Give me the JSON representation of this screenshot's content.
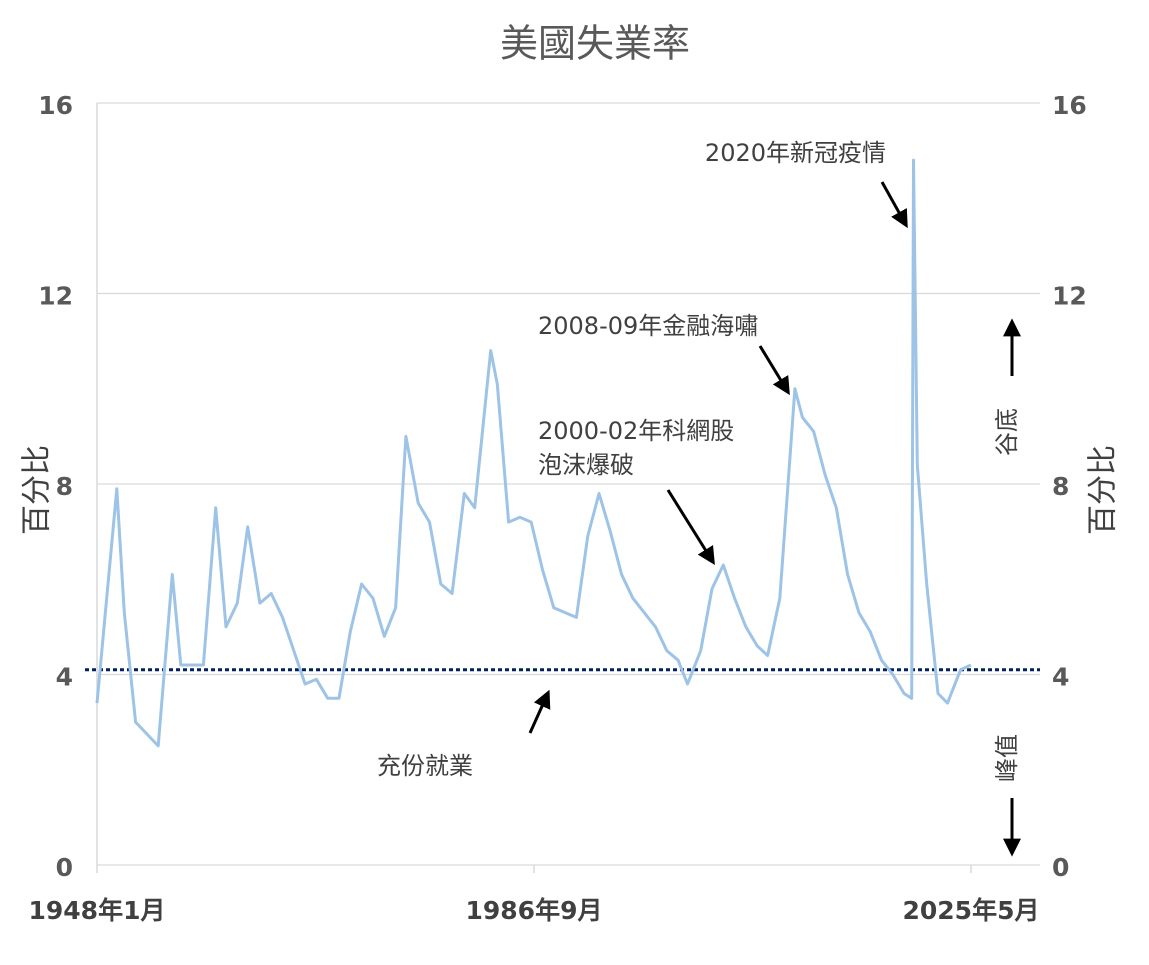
{
  "chart_data": {
    "type": "line",
    "title": "美國失業率",
    "y_label": "百分比",
    "y2_label": "百分比",
    "ylim": [
      0,
      16
    ],
    "yticks": [
      0,
      4,
      8,
      12,
      16
    ],
    "y2lim": [
      0,
      16
    ],
    "y2ticks": [
      0,
      4,
      8,
      12,
      16
    ],
    "grid": true,
    "xlim": [
      "1948-01",
      "2025-05"
    ],
    "xticks": [
      {
        "value": "1948-01",
        "label": "1948年1月"
      },
      {
        "value": "1986-09",
        "label": "1986年9月"
      },
      {
        "value": "2025-05",
        "label": "2025年5月"
      }
    ],
    "x": [
      "1948-01",
      "1949-10",
      "1950-06",
      "1951-06",
      "1953-06",
      "1954-09",
      "1955-06",
      "1957-06",
      "1958-07",
      "1959-06",
      "1960-06",
      "1961-05",
      "1962-06",
      "1963-06",
      "1964-06",
      "1965-06",
      "1966-06",
      "1967-06",
      "1968-06",
      "1969-06",
      "1970-06",
      "1971-06",
      "1972-06",
      "1973-06",
      "1974-06",
      "1975-05",
      "1976-06",
      "1977-06",
      "1978-06",
      "1979-06",
      "1980-07",
      "1981-06",
      "1982-11",
      "1983-06",
      "1984-06",
      "1985-06",
      "1986-06",
      "1987-06",
      "1988-06",
      "1989-06",
      "1990-06",
      "1991-06",
      "1992-06",
      "1993-06",
      "1994-06",
      "1995-06",
      "1996-06",
      "1997-06",
      "1998-06",
      "1999-06",
      "2000-04",
      "2001-06",
      "2002-06",
      "2003-06",
      "2004-06",
      "2005-06",
      "2006-06",
      "2007-05",
      "2008-06",
      "2009-10",
      "2010-06",
      "2011-06",
      "2012-06",
      "2013-06",
      "2014-06",
      "2015-06",
      "2016-06",
      "2017-06",
      "2018-06",
      "2019-06",
      "2020-02",
      "2020-04",
      "2020-08",
      "2021-06",
      "2022-06",
      "2023-04",
      "2024-06",
      "2025-05"
    ],
    "series": [
      {
        "name": "失業率",
        "color": "#9dc3e6",
        "values": [
          3.4,
          7.9,
          5.3,
          3.0,
          2.5,
          6.1,
          4.2,
          4.2,
          7.5,
          5.0,
          5.5,
          7.1,
          5.5,
          5.7,
          5.2,
          4.5,
          3.8,
          3.9,
          3.5,
          3.5,
          4.9,
          5.9,
          5.6,
          4.8,
          5.4,
          9.0,
          7.6,
          7.2,
          5.9,
          5.7,
          7.8,
          7.5,
          10.8,
          10.1,
          7.2,
          7.3,
          7.2,
          6.2,
          5.4,
          5.3,
          5.2,
          6.9,
          7.8,
          7.0,
          6.1,
          5.6,
          5.3,
          5.0,
          4.5,
          4.3,
          3.8,
          4.5,
          5.8,
          6.3,
          5.6,
          5.0,
          4.6,
          4.4,
          5.6,
          10.0,
          9.4,
          9.1,
          8.2,
          7.5,
          6.1,
          5.3,
          4.9,
          4.3,
          4.0,
          3.6,
          3.5,
          14.8,
          8.4,
          5.9,
          3.6,
          3.4,
          4.1,
          4.2
        ]
      }
    ],
    "reference_line": {
      "value": 4.1,
      "color": "#002060",
      "label": "充份就業"
    },
    "annotations": [
      "2020年新冠疫情",
      "2008-09年金融海嘯",
      "2000-02年科網股",
      "泡沫爆破"
    ],
    "side_labels": [
      "谷底",
      "峰值"
    ]
  }
}
